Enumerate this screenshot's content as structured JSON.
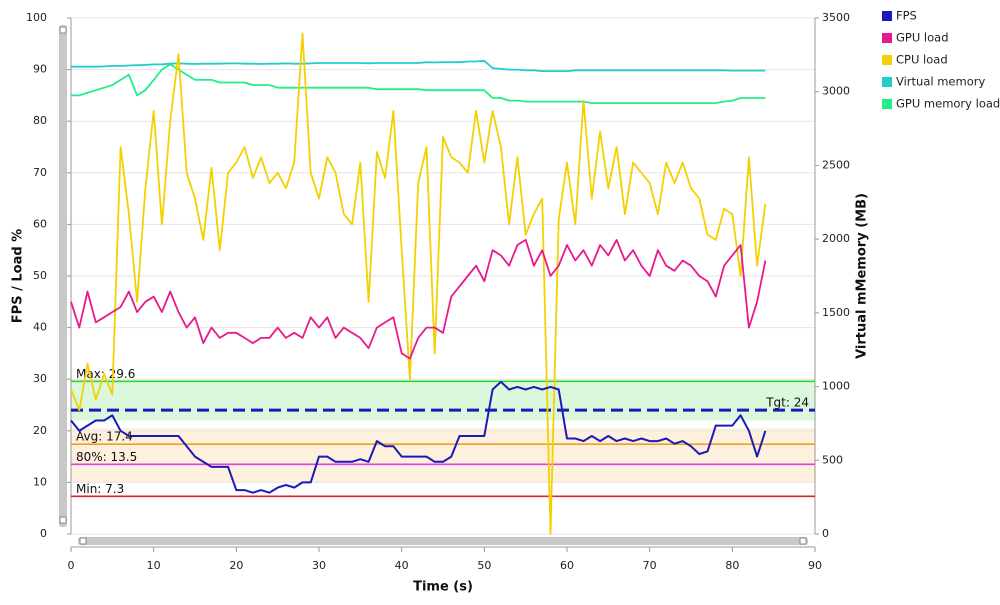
{
  "chart_data": {
    "type": "line",
    "x_label": "Time (s)",
    "y_label": "FPS / Load %",
    "y2_label": "Virtual mMemory (MB)",
    "xlim": [
      0,
      90
    ],
    "xticks": [
      0,
      10,
      20,
      30,
      40,
      50,
      60,
      70,
      80,
      90
    ],
    "ylim": [
      0,
      100
    ],
    "yticks": [
      0,
      10,
      20,
      30,
      40,
      50,
      60,
      70,
      80,
      90,
      100
    ],
    "y2lim": [
      0,
      3500
    ],
    "y2ticks": [
      0,
      500,
      1000,
      1500,
      2000,
      2500,
      3000,
      3500
    ],
    "grid": true,
    "legend": "outside-top-right",
    "bands": [
      {
        "from": 22,
        "to": 29.6,
        "color": "#dcf8dc"
      },
      {
        "from": 10,
        "to": 20.5,
        "color": "#fdf0dc"
      }
    ],
    "reference_lines": [
      {
        "label": "Max: 29.6",
        "value": 29.6,
        "color": "#2ed62e",
        "dash": false,
        "anchor": "left"
      },
      {
        "label": "Tgt: 24",
        "value": 24,
        "color": "#1a1ab8",
        "dash": true,
        "anchor": "right"
      },
      {
        "label": "Avg:  17.4",
        "value": 17.4,
        "color": "#f0a020",
        "dash": false,
        "anchor": "left"
      },
      {
        "label": "80%: 13.5",
        "value": 13.5,
        "color": "#e040e0",
        "dash": false,
        "anchor": "left"
      },
      {
        "label": "Min:  7.3",
        "value": 7.3,
        "color": "#e02030",
        "dash": false,
        "anchor": "left"
      }
    ],
    "x": [
      0,
      1,
      2,
      3,
      4,
      5,
      6,
      7,
      8,
      9,
      10,
      11,
      12,
      13,
      14,
      15,
      16,
      17,
      18,
      19,
      20,
      21,
      22,
      23,
      24,
      25,
      26,
      27,
      28,
      29,
      30,
      31,
      32,
      33,
      34,
      35,
      36,
      37,
      38,
      39,
      40,
      41,
      42,
      43,
      44,
      45,
      46,
      47,
      48,
      49,
      50,
      51,
      52,
      53,
      54,
      55,
      56,
      57,
      58,
      59,
      60,
      61,
      62,
      63,
      64,
      65,
      66,
      67,
      68,
      69,
      70,
      71,
      72,
      73,
      74,
      75,
      76,
      77,
      78,
      79,
      80,
      81,
      82,
      83,
      84
    ],
    "series": [
      {
        "name": "GPU memory load",
        "color": "#22ee88",
        "axis": "y",
        "values": [
          85,
          85,
          85.5,
          86,
          86.5,
          87,
          88,
          89,
          85,
          86,
          88,
          90,
          91,
          90,
          89,
          88,
          88,
          88,
          87.5,
          87.5,
          87.5,
          87.5,
          87,
          87,
          87,
          86.5,
          86.5,
          86.5,
          86.5,
          86.5,
          86.5,
          86.5,
          86.5,
          86.5,
          86.5,
          86.5,
          86.5,
          86.2,
          86.2,
          86.2,
          86.2,
          86.2,
          86.2,
          86,
          86,
          86,
          86,
          86,
          86,
          86,
          86,
          84.5,
          84.5,
          84,
          84,
          83.8,
          83.8,
          83.8,
          83.8,
          83.8,
          83.8,
          83.8,
          83.8,
          83.5,
          83.5,
          83.5,
          83.5,
          83.5,
          83.5,
          83.5,
          83.5,
          83.5,
          83.5,
          83.5,
          83.5,
          83.5,
          83.5,
          83.5,
          83.5,
          83.8,
          84,
          84.5,
          84.5,
          84.5,
          84.5
        ]
      },
      {
        "name": "Virtual memory",
        "color": "#22cccc",
        "axis": "y2",
        "values": [
          3170,
          3170,
          3170,
          3170,
          3172,
          3175,
          3175,
          3178,
          3180,
          3182,
          3185,
          3185,
          3190,
          3192,
          3190,
          3188,
          3190,
          3190,
          3190,
          3192,
          3192,
          3190,
          3190,
          3188,
          3190,
          3190,
          3192,
          3190,
          3190,
          3192,
          3195,
          3195,
          3195,
          3195,
          3195,
          3195,
          3193,
          3195,
          3195,
          3195,
          3195,
          3195,
          3195,
          3200,
          3198,
          3200,
          3200,
          3200,
          3205,
          3205,
          3210,
          3160,
          3155,
          3150,
          3150,
          3145,
          3145,
          3140,
          3140,
          3140,
          3140,
          3145,
          3145,
          3145,
          3145,
          3145,
          3145,
          3145,
          3145,
          3145,
          3145,
          3145,
          3145,
          3145,
          3145,
          3145,
          3145,
          3145,
          3145,
          3145,
          3143,
          3143,
          3143,
          3143,
          3143
        ]
      },
      {
        "name": "CPU load",
        "color": "#f5d000",
        "axis": "y",
        "values": [
          28,
          24,
          33,
          26,
          31,
          27,
          75,
          62,
          45,
          67,
          82,
          60,
          80,
          93,
          70,
          65,
          57,
          71,
          55,
          70,
          72,
          75,
          69,
          73,
          68,
          70,
          67,
          72,
          97,
          70,
          65,
          73,
          70,
          62,
          60,
          72,
          45,
          74,
          69,
          82,
          55,
          30,
          68,
          75,
          35,
          77,
          73,
          72,
          70,
          82,
          72,
          82,
          75,
          60,
          73,
          58,
          62,
          65,
          0,
          61,
          72,
          60,
          84,
          65,
          78,
          67,
          75,
          62,
          72,
          70,
          68,
          62,
          72,
          68,
          72,
          67,
          65,
          58,
          57,
          63,
          62,
          50,
          73,
          52,
          64
        ]
      },
      {
        "name": "GPU load",
        "color": "#e8198c",
        "axis": "y",
        "values": [
          45,
          40,
          47,
          41,
          42,
          43,
          44,
          47,
          43,
          45,
          46,
          43,
          47,
          43,
          40,
          42,
          37,
          40,
          38,
          39,
          39,
          38,
          37,
          38,
          38,
          40,
          38,
          39,
          38,
          42,
          40,
          42,
          38,
          40,
          39,
          38,
          36,
          40,
          41,
          42,
          35,
          34,
          38,
          40,
          40,
          39,
          46,
          48,
          50,
          52,
          49,
          55,
          54,
          52,
          56,
          57,
          52,
          55,
          50,
          52,
          56,
          53,
          55,
          52,
          56,
          54,
          57,
          53,
          55,
          52,
          50,
          55,
          52,
          51,
          53,
          52,
          50,
          49,
          46,
          52,
          54,
          56,
          40,
          45,
          53
        ]
      },
      {
        "name": "FPS",
        "color": "#1a1ab8",
        "axis": "y",
        "values": [
          22,
          20,
          21,
          22,
          22,
          23,
          20,
          19,
          19,
          19,
          19,
          19,
          19,
          19,
          17,
          15,
          14,
          13,
          13,
          13,
          8.5,
          8.5,
          8,
          8.5,
          8,
          9,
          9.5,
          9,
          10,
          10,
          15,
          15,
          14,
          14,
          14,
          14.5,
          14,
          18,
          17,
          17,
          15,
          15,
          15,
          15,
          14,
          14,
          15,
          19,
          19,
          19,
          19,
          28,
          29.5,
          28,
          28.5,
          28,
          28.5,
          28,
          28.5,
          28,
          18.5,
          18.5,
          18,
          19,
          18,
          19,
          18,
          18.5,
          18,
          18.5,
          18,
          18,
          18.5,
          17.5,
          18,
          17,
          15.5,
          16,
          21,
          21,
          21,
          23,
          20,
          15,
          20
        ]
      }
    ]
  }
}
